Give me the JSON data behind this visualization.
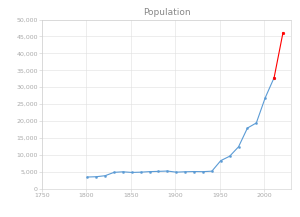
{
  "title": "Population",
  "xlim": [
    1750,
    2030
  ],
  "ylim": [
    0,
    50000
  ],
  "xticks": [
    1750,
    1800,
    1850,
    1900,
    1950,
    2000
  ],
  "yticks": [
    0,
    5000,
    10000,
    15000,
    20000,
    25000,
    30000,
    35000,
    40000,
    45000,
    50000
  ],
  "blue_data": [
    [
      1801,
      3474
    ],
    [
      1811,
      3566
    ],
    [
      1821,
      3864
    ],
    [
      1831,
      4857
    ],
    [
      1841,
      5018
    ],
    [
      1851,
      4831
    ],
    [
      1861,
      4909
    ],
    [
      1871,
      5072
    ],
    [
      1881,
      5145
    ],
    [
      1891,
      5240
    ],
    [
      1901,
      4914
    ],
    [
      1911,
      5028
    ],
    [
      1921,
      5095
    ],
    [
      1931,
      5060
    ],
    [
      1941,
      5200
    ],
    [
      1951,
      8316
    ],
    [
      1961,
      9617
    ],
    [
      1971,
      12398
    ],
    [
      1981,
      17943
    ],
    [
      1991,
      19448
    ],
    [
      2001,
      26884
    ],
    [
      2011,
      32820
    ]
  ],
  "red_data": [
    [
      2011,
      32820
    ],
    [
      2021,
      46150
    ]
  ],
  "blue_color": "#5B9BD5",
  "red_color": "#FF0000",
  "grid_color": "#E0E0E0",
  "title_fontsize": 6.5,
  "tick_fontsize": 4.5,
  "background_color": "#FFFFFF",
  "title_color": "#888888",
  "tick_color": "#AAAAAA",
  "spine_color": "#CCCCCC"
}
